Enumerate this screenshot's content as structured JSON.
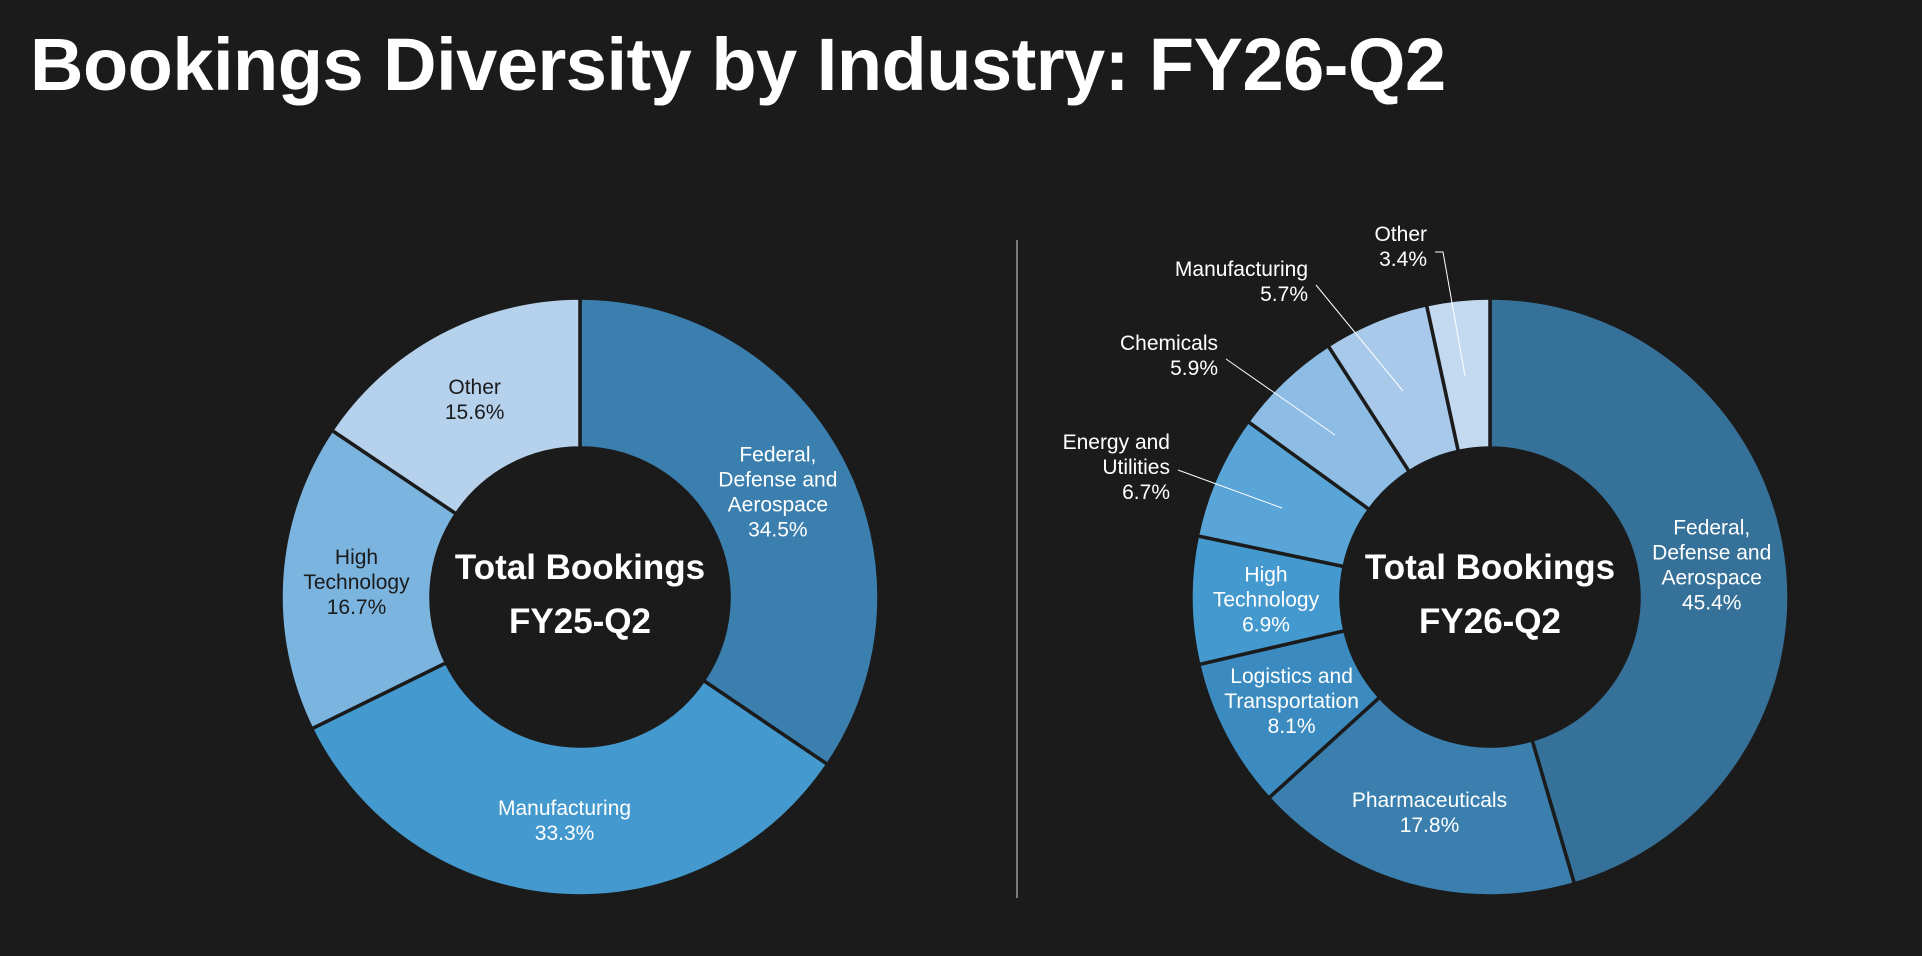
{
  "title": "Bookings Diversity by Industry: FY26-Q2",
  "colors": {
    "background": "#1b1b1b",
    "text_light": "#ffffff",
    "text_dark": "#1b1b1b"
  },
  "chart_data": [
    {
      "type": "pie",
      "variant": "donut",
      "center_label": [
        "Total Bookings",
        "FY25-Q2"
      ],
      "start_angle_deg": 0,
      "direction": "clockwise",
      "series": [
        {
          "name": "Federal, Defense and Aerospace",
          "value": 34.5,
          "value_label": "34.5%",
          "label_lines": [
            "Federal,",
            "Defense and",
            "Aerospace"
          ],
          "color": "#3a7fae",
          "label_color": "#ffffff"
        },
        {
          "name": "Manufacturing",
          "value": 33.3,
          "value_label": "33.3%",
          "label_lines": [
            "Manufacturing"
          ],
          "color": "#4499ce",
          "label_color": "#ffffff"
        },
        {
          "name": "High Technology",
          "value": 16.7,
          "value_label": "16.7%",
          "label_lines": [
            "High",
            "Technology"
          ],
          "color": "#7cb4e0",
          "label_color": "#1b1b1b"
        },
        {
          "name": "Other",
          "value": 15.6,
          "value_label": "15.6%",
          "label_lines": [
            "Other"
          ],
          "color": "#b6d1ec",
          "label_color": "#1b1b1b"
        }
      ]
    },
    {
      "type": "pie",
      "variant": "donut",
      "center_label": [
        "Total Bookings",
        "FY26-Q2"
      ],
      "start_angle_deg": 0,
      "direction": "clockwise",
      "series": [
        {
          "name": "Federal, Defense and Aerospace",
          "value": 45.4,
          "value_label": "45.4%",
          "label_lines": [
            "Federal,",
            "Defense and",
            "Aerospace"
          ],
          "color": "#357199",
          "label_color": "#ffffff",
          "label_outside": false
        },
        {
          "name": "Pharmaceuticals",
          "value": 17.8,
          "value_label": "17.8%",
          "label_lines": [
            "Pharmaceuticals"
          ],
          "color": "#3a7fae",
          "label_color": "#ffffff",
          "label_outside": false
        },
        {
          "name": "Logistics and Transportation",
          "value": 8.1,
          "value_label": "8.1%",
          "label_lines": [
            "Logistics and",
            "Transportation"
          ],
          "color": "#3b8bc0",
          "label_color": "#ffffff",
          "label_outside": false
        },
        {
          "name": "High Technology",
          "value": 6.9,
          "value_label": "6.9%",
          "label_lines": [
            "High",
            "Technology"
          ],
          "color": "#4499ce",
          "label_color": "#ffffff",
          "label_outside": false
        },
        {
          "name": "Energy and Utilities",
          "value": 6.7,
          "value_label": "6.7%",
          "label_lines": [
            "Energy and",
            "Utilities"
          ],
          "color": "#5aa5d8",
          "label_color": "#ffffff",
          "label_outside": true
        },
        {
          "name": "Chemicals",
          "value": 5.9,
          "value_label": "5.9%",
          "label_lines": [
            "Chemicals"
          ],
          "color": "#8dbde4",
          "label_color": "#ffffff",
          "label_outside": true
        },
        {
          "name": "Manufacturing",
          "value": 5.7,
          "value_label": "5.7%",
          "label_lines": [
            "Manufacturing"
          ],
          "color": "#a8c9ea",
          "label_color": "#ffffff",
          "label_outside": true
        },
        {
          "name": "Other",
          "value": 3.4,
          "value_label": "3.4%",
          "label_lines": [
            "Other"
          ],
          "color": "#c2d9f0",
          "label_color": "#ffffff",
          "label_outside": true
        }
      ]
    }
  ]
}
